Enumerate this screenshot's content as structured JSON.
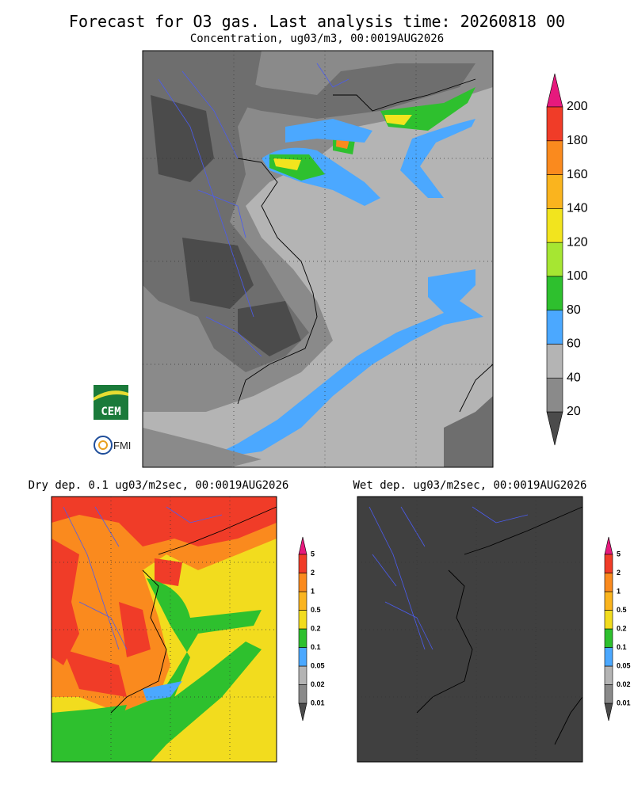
{
  "title": "Forecast for O3 gas. Last analysis time: 20260818 00",
  "main_panel": {
    "subtitle": "Concentration, ug03/m3, 00:0019AUG2026",
    "colorbar": {
      "labels": [
        20,
        40,
        60,
        80,
        100,
        120,
        140,
        160,
        180,
        200
      ],
      "colors": [
        "#4b4b4b",
        "#8a8a8a",
        "#b4b4b4",
        "#4ba8ff",
        "#2ec02e",
        "#a6e632",
        "#f2e41e",
        "#fab41e",
        "#fa8a1e",
        "#f03c28",
        "#e6197d"
      ]
    }
  },
  "dry_panel": {
    "title": "Dry dep. 0.1 ug03/m2sec, 00:0019AUG2026",
    "colorbar": {
      "labels": [
        0.01,
        0.02,
        0.05,
        0.1,
        0.2,
        0.5,
        1,
        2,
        5
      ],
      "colors": [
        "#4b4b4b",
        "#8a8a8a",
        "#b4b4b4",
        "#4ba8ff",
        "#2ec02e",
        "#f2dc1e",
        "#fab41e",
        "#fa8a1e",
        "#f03c28",
        "#e6197d"
      ]
    }
  },
  "wet_panel": {
    "title": "Wet dep. ug03/m2sec, 00:0019AUG2026",
    "colorbar": {
      "labels": [
        0.01,
        0.02,
        0.05,
        0.1,
        0.2,
        0.5,
        1,
        2,
        5
      ],
      "colors": [
        "#4b4b4b",
        "#8a8a8a",
        "#b4b4b4",
        "#4ba8ff",
        "#2ec02e",
        "#f2dc1e",
        "#fab41e",
        "#fa8a1e",
        "#f03c28",
        "#e6197d"
      ]
    }
  },
  "logos": [
    "CEM",
    "FMI"
  ]
}
